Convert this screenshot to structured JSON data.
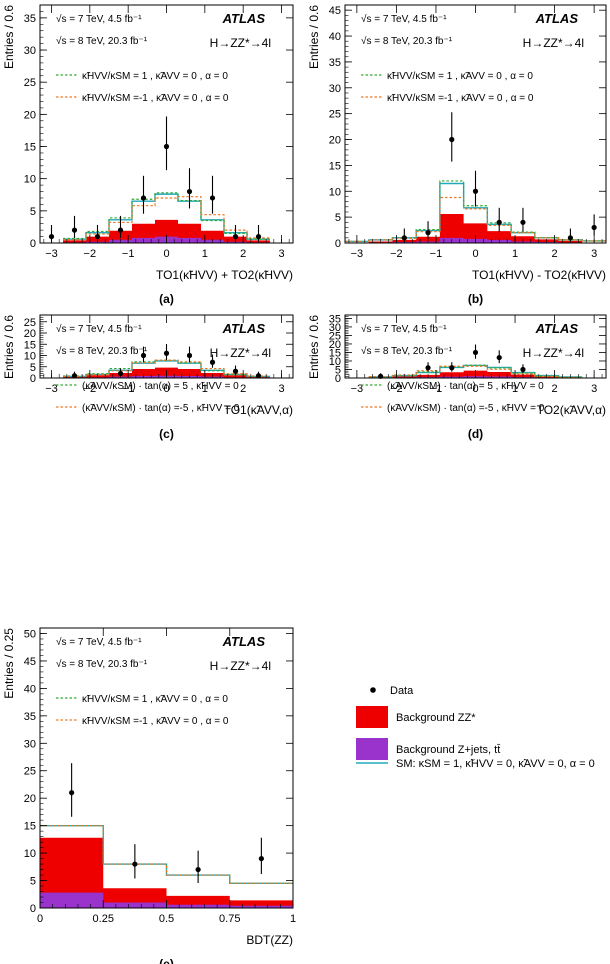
{
  "atlas": "ATLAS",
  "energy7": "√s = 7 TeV, 4.5 fb⁻¹",
  "energy8": "√s = 8 TeV, 20.3 fb⁻¹",
  "channel": "H→ZZ*→4l",
  "legend": {
    "data": "Data",
    "bkg_zz": "Background ZZ*",
    "bkg_zjets": "Background Z+jets, tt̄",
    "sm": "SM: κSM = 1, κ̃HVV = 0, κ̃AVV = 0, α = 0"
  },
  "colors": {
    "zz": "#ee0000",
    "zjets": "#9933cc",
    "sm": "#22aabb",
    "green": "#33aa33",
    "orange": "#ee7722",
    "data": "#000000"
  },
  "chart_data": [
    {
      "id": "a",
      "type": "bar",
      "caption": "(a)",
      "ylabel": "Entries / 0.6",
      "xlabel": "TO1(κ̃HVV) + TO2(κ̃HVV)",
      "xlim": [
        -3.3,
        3.3
      ],
      "ylim": [
        0,
        37
      ],
      "xticks": [
        -3,
        -2,
        -1,
        0,
        1,
        2,
        3
      ],
      "yticks": [
        0,
        5,
        10,
        15,
        20,
        25,
        30,
        35
      ],
      "edges": [
        -2.7,
        -2.1,
        -1.5,
        -0.9,
        -0.3,
        0.3,
        0.9,
        1.5,
        2.1,
        2.7
      ],
      "zjets": [
        0.1,
        0.2,
        0.5,
        0.8,
        1.0,
        0.8,
        0.5,
        0.2,
        0.1
      ],
      "zz": [
        0.3,
        0.8,
        1.4,
        2.2,
        2.6,
        2.2,
        1.4,
        0.8,
        0.3
      ],
      "sm": [
        0.6,
        1.6,
        3.6,
        6.5,
        7.6,
        6.5,
        3.6,
        1.6,
        0.6
      ],
      "alt1": [
        0.7,
        1.8,
        3.9,
        6.8,
        7.8,
        6.6,
        3.5,
        1.5,
        0.6
      ],
      "alt2": [
        0.5,
        1.4,
        3.2,
        5.8,
        7.0,
        7.2,
        4.4,
        2.0,
        0.8
      ],
      "data_x": [
        -3.0,
        -2.4,
        -1.8,
        -1.2,
        -0.6,
        0.0,
        0.6,
        1.2,
        1.8,
        2.4
      ],
      "data_y": [
        1,
        2,
        1,
        2,
        7,
        15,
        8,
        7,
        1,
        1
      ],
      "legend": [
        "κ̃HVV/κSM = 1 , κ̃AVV = 0 , α = 0",
        "κ̃HVV/κSM =-1 , κ̃AVV = 0 , α = 0"
      ]
    },
    {
      "id": "b",
      "type": "bar",
      "caption": "(b)",
      "ylabel": "Entries / 0.6",
      "xlabel": "TO1(κ̃HVV) - TO2(κ̃HVV)",
      "xlim": [
        -3.3,
        3.3
      ],
      "ylim": [
        0,
        46
      ],
      "xticks": [
        -3,
        -2,
        -1,
        0,
        1,
        2,
        3
      ],
      "yticks": [
        0,
        5,
        10,
        15,
        20,
        25,
        30,
        35,
        40,
        45
      ],
      "edges": [
        -3.3,
        -2.7,
        -2.1,
        -1.5,
        -0.9,
        -0.3,
        0.3,
        0.9,
        1.5,
        2.1,
        2.7,
        3.3
      ],
      "zjets": [
        0.0,
        0.1,
        0.2,
        0.3,
        1.0,
        0.8,
        0.6,
        0.3,
        0.2,
        0.1,
        0.0
      ],
      "zz": [
        0.1,
        0.2,
        0.4,
        0.9,
        4.6,
        3.0,
        1.7,
        1.0,
        0.5,
        0.3,
        0.1
      ],
      "sm": [
        0.3,
        0.6,
        1.0,
        2.4,
        11.5,
        6.8,
        3.6,
        2.0,
        1.0,
        0.6,
        0.4
      ],
      "alt1": [
        0.3,
        0.6,
        1.0,
        2.6,
        12.0,
        7.2,
        3.9,
        2.1,
        1.0,
        0.6,
        0.4
      ],
      "alt2": [
        0.3,
        0.6,
        0.9,
        2.2,
        8.8,
        6.6,
        3.4,
        2.0,
        1.0,
        0.6,
        0.4
      ],
      "data_x": [
        -1.8,
        -1.2,
        -0.6,
        0.0,
        0.6,
        1.2,
        2.4,
        3.0
      ],
      "data_y": [
        1,
        2,
        20,
        10,
        4,
        4,
        1,
        3
      ],
      "legend": [
        "κ̃HVV/κSM = 1 , κ̃AVV = 0 , α = 0",
        "κ̃HVV/κSM =-1 , κ̃AVV = 0 , α = 0"
      ]
    },
    {
      "id": "c",
      "type": "bar",
      "caption": "(c)",
      "ylabel": "Entries / 0.6",
      "xlabel": "TO1(κ̃AVV,α)",
      "xlim": [
        -3.3,
        3.3
      ],
      "ylim": [
        0,
        28
      ],
      "xticks": [
        -3,
        -2,
        -1,
        0,
        1,
        2,
        3
      ],
      "yticks": [
        0,
        5,
        10,
        15,
        20,
        25
      ],
      "edges": [
        -2.7,
        -2.1,
        -1.5,
        -0.9,
        -0.3,
        0.3,
        0.9,
        1.5,
        2.1,
        2.7
      ],
      "zjets": [
        0.1,
        0.3,
        0.6,
        0.9,
        1.0,
        0.9,
        0.6,
        0.3,
        0.1
      ],
      "zz": [
        0.4,
        0.9,
        1.6,
        3.1,
        3.6,
        3.1,
        1.6,
        0.9,
        0.4
      ],
      "sm": [
        0.7,
        1.6,
        3.4,
        6.6,
        7.6,
        6.6,
        3.4,
        1.6,
        0.7
      ],
      "alt1": [
        0.9,
        1.9,
        4.2,
        7.2,
        7.9,
        6.8,
        3.2,
        1.5,
        0.7
      ],
      "alt2": [
        0.7,
        1.5,
        3.2,
        6.8,
        7.9,
        7.2,
        4.2,
        1.9,
        0.9
      ],
      "data_x": [
        -2.4,
        -1.2,
        -0.6,
        0.0,
        0.6,
        1.2,
        1.8,
        2.4
      ],
      "data_y": [
        1,
        2,
        10,
        11,
        10,
        7,
        3,
        1
      ],
      "legend": [
        "(κ̃AVV/κSM) · tan(α) = 5 , κ̃HVV = 0",
        "(κ̃AVV/κSM) · tan(α) =-5 , κ̃HVV = 0"
      ]
    },
    {
      "id": "d",
      "type": "bar",
      "caption": "(d)",
      "ylabel": "Entries / 0.6",
      "xlabel": "TO2(κ̃AVV,α)",
      "xlim": [
        -3.3,
        3.3
      ],
      "ylim": [
        0,
        37
      ],
      "xticks": [
        -3,
        -2,
        -1,
        0,
        1,
        2,
        3
      ],
      "yticks": [
        0,
        5,
        10,
        15,
        20,
        25,
        30,
        35
      ],
      "edges": [
        -2.7,
        -2.1,
        -1.5,
        -0.9,
        -0.3,
        0.3,
        0.9,
        1.5,
        2.1,
        2.7
      ],
      "zjets": [
        0.1,
        0.3,
        0.5,
        0.8,
        1.0,
        0.9,
        0.5,
        0.3,
        0.1
      ],
      "zz": [
        0.3,
        0.7,
        1.3,
        2.6,
        3.3,
        2.6,
        1.5,
        0.6,
        0.2
      ],
      "sm": [
        0.6,
        1.4,
        3.2,
        6.2,
        7.4,
        6.2,
        3.2,
        1.4,
        0.6
      ],
      "alt1": [
        0.7,
        1.5,
        3.6,
        6.6,
        7.5,
        5.9,
        2.9,
        1.1,
        0.4
      ],
      "alt2": [
        0.8,
        1.8,
        4.3,
        6.9,
        6.9,
        5.1,
        2.4,
        0.9,
        0.3
      ],
      "data_x": [
        -2.4,
        -1.2,
        -0.6,
        0.0,
        0.6,
        1.2
      ],
      "data_y": [
        1,
        6,
        6,
        15,
        12,
        5
      ],
      "legend": [
        "(κ̃AVV/κSM) · tan(α) = 5 , κ̃HVV = 0",
        "(κ̃AVV/κSM) · tan(α) =-5 , κ̃HVV = 0"
      ]
    },
    {
      "id": "e",
      "type": "bar",
      "caption": "(e)",
      "ylabel": "Entries / 0.25",
      "xlabel": "BDT(ZZ)",
      "xlim": [
        0,
        1
      ],
      "ylim": [
        0,
        51
      ],
      "xticks": [
        0,
        0.25,
        0.5,
        0.75,
        1
      ],
      "xticklabels": [
        "0",
        "0.25",
        "0.5",
        "0.75",
        "1"
      ],
      "yticks": [
        0,
        5,
        10,
        15,
        20,
        25,
        30,
        35,
        40,
        45,
        50
      ],
      "edges": [
        0,
        0.25,
        0.5,
        0.75,
        1.0
      ],
      "zjets": [
        2.8,
        1.0,
        0.6,
        0.4
      ],
      "zz": [
        10.0,
        2.6,
        1.6,
        1.0
      ],
      "sm": [
        15.0,
        8.0,
        6.0,
        4.5
      ],
      "alt1": [
        15.0,
        8.0,
        6.0,
        4.5
      ],
      "alt2": [
        15.0,
        8.0,
        6.0,
        4.5
      ],
      "data_x": [
        0.125,
        0.375,
        0.625,
        0.875
      ],
      "data_y": [
        21,
        8,
        7,
        9
      ],
      "legend": [
        "κ̃HVV/κSM = 1 , κ̃AVV = 0 , α = 0",
        "κ̃HVV/κSM =-1 , κ̃AVV = 0 , α = 0"
      ]
    }
  ]
}
